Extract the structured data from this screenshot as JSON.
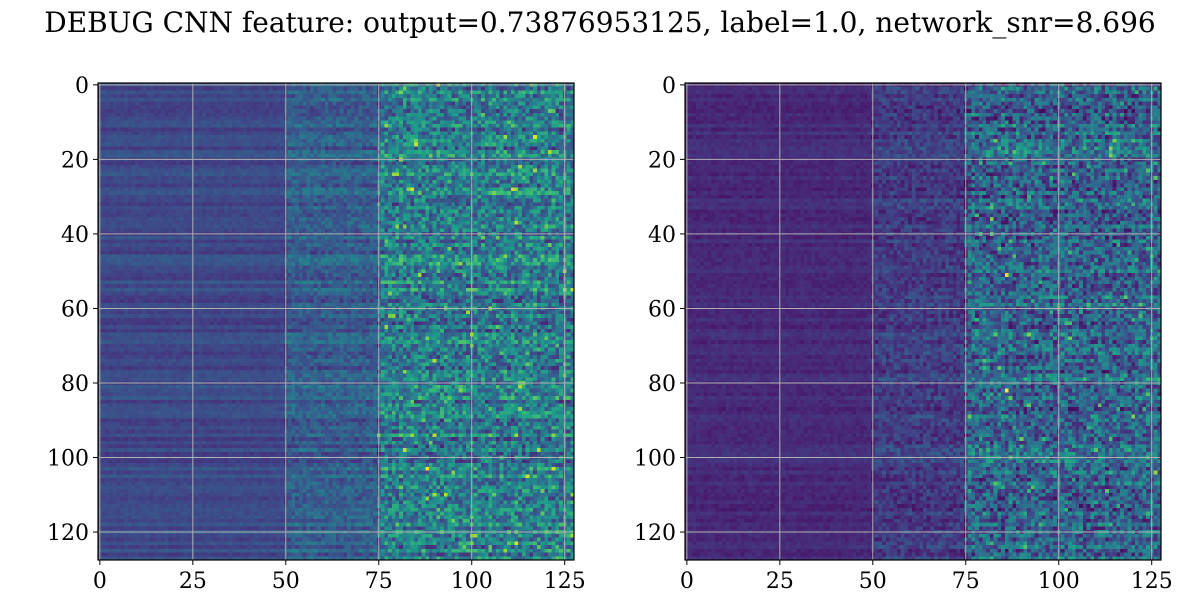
{
  "title": "DEBUG CNN feature: output=0.73876953125, label=1.0, network_snr=8.696",
  "chart_data": [
    {
      "type": "heatmap",
      "colormap": "viridis",
      "rows": 128,
      "cols": 128,
      "xlim": [
        0,
        127
      ],
      "ylim": [
        127,
        0
      ],
      "xticks": [
        0,
        25,
        50,
        75,
        100,
        125
      ],
      "yticks": [
        0,
        20,
        40,
        60,
        80,
        100,
        120
      ],
      "grid": true,
      "intensity_by_column": [
        {
          "col_range": [
            0,
            50
          ],
          "level": 0.22
        },
        {
          "col_range": [
            50,
            75
          ],
          "level": 0.3
        },
        {
          "col_range": [
            75,
            127
          ],
          "level": 0.42
        }
      ],
      "hotspots": [
        {
          "x": 88,
          "y": 103,
          "value": 1.0
        },
        {
          "x": 99,
          "y": 61,
          "value": 0.85
        },
        {
          "x": 88,
          "y": 68,
          "value": 0.8
        },
        {
          "x": 107,
          "y": 65,
          "value": 0.75
        }
      ]
    },
    {
      "type": "heatmap",
      "colormap": "viridis",
      "rows": 128,
      "cols": 128,
      "xlim": [
        0,
        127
      ],
      "ylim": [
        127,
        0
      ],
      "xticks": [
        0,
        25,
        50,
        75,
        100,
        125
      ],
      "yticks": [
        0,
        20,
        40,
        60,
        80,
        100,
        120
      ],
      "grid": true,
      "intensity_by_column": [
        {
          "col_range": [
            0,
            50
          ],
          "level": 0.12
        },
        {
          "col_range": [
            50,
            75
          ],
          "level": 0.18
        },
        {
          "col_range": [
            75,
            127
          ],
          "level": 0.32
        }
      ],
      "hotspots": [
        {
          "x": 86,
          "y": 82,
          "value": 1.0
        },
        {
          "x": 86,
          "y": 51,
          "value": 0.95
        },
        {
          "x": 82,
          "y": 36,
          "value": 0.8
        },
        {
          "x": 84,
          "y": 76,
          "value": 0.75
        }
      ]
    }
  ]
}
